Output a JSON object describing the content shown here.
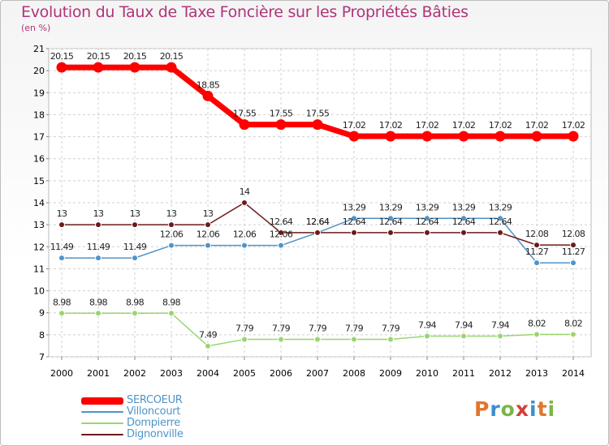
{
  "chart_data": {
    "type": "line",
    "title": "Evolution du Taux de Taxe Foncière sur les Propriétés Bâties",
    "subtitle": "(en %)",
    "x": [
      "2000",
      "2001",
      "2002",
      "2003",
      "2004",
      "2005",
      "2006",
      "2007",
      "2008",
      "2009",
      "2010",
      "2011",
      "2012",
      "2013",
      "2014"
    ],
    "ylim": [
      7,
      21
    ],
    "yticks": [
      "7",
      "8",
      "9",
      "10",
      "11",
      "12",
      "13",
      "14",
      "15",
      "16",
      "17",
      "18",
      "19",
      "20",
      "21"
    ],
    "grid": true,
    "legend_position": "bottom-left",
    "series": [
      {
        "name": "SERCOEUR",
        "color": "#ff0000",
        "values": [
          20.15,
          20.15,
          20.15,
          20.15,
          18.85,
          17.55,
          17.55,
          17.55,
          17.02,
          17.02,
          17.02,
          17.02,
          17.02,
          17.02,
          17.02
        ],
        "labels": [
          "20.15",
          "20.15",
          "20.15",
          "20.15",
          "18.85",
          "17.55",
          "17.55",
          "17.55",
          "17.02",
          "17.02",
          "17.02",
          "17.02",
          "17.02",
          "17.02",
          "17.02"
        ]
      },
      {
        "name": "Villoncourt",
        "color": "#4f94c9",
        "values": [
          11.49,
          11.49,
          11.49,
          12.06,
          12.06,
          12.06,
          12.06,
          12.64,
          13.29,
          13.29,
          13.29,
          13.29,
          13.29,
          11.27,
          11.27
        ],
        "labels": [
          "11.49",
          "11.49",
          "11.49",
          "12.06",
          "12.06",
          "12.06",
          "12.06",
          "12.64",
          "13.29",
          "13.29",
          "13.29",
          "13.29",
          "13.29",
          "11.27",
          "11.27"
        ]
      },
      {
        "name": "Dompierre",
        "color": "#99d66f",
        "values": [
          8.98,
          8.98,
          8.98,
          8.98,
          7.49,
          7.79,
          7.79,
          7.79,
          7.79,
          7.79,
          7.94,
          7.94,
          7.94,
          8.02,
          8.02
        ],
        "labels": [
          "8.98",
          "8.98",
          "8.98",
          "8.98",
          "7.49",
          "7.79",
          "7.79",
          "7.79",
          "7.79",
          "7.79",
          "7.94",
          "7.94",
          "7.94",
          "8.02",
          "8.02"
        ]
      },
      {
        "name": "Dignonville",
        "color": "#6b1a1a",
        "values": [
          13,
          13,
          13,
          13,
          13,
          14,
          12.64,
          12.64,
          12.64,
          12.64,
          12.64,
          12.64,
          12.64,
          12.08,
          12.08
        ],
        "labels": [
          "13",
          "13",
          "13",
          "13",
          "13",
          "14",
          "12.64",
          "12.64",
          "12.64",
          "12.64",
          "12.64",
          "12.64",
          "12.64",
          "12.08",
          "12.08"
        ]
      }
    ]
  },
  "logo": {
    "letters": [
      "P",
      "r",
      "o",
      "x",
      "i",
      "t",
      "i"
    ]
  }
}
